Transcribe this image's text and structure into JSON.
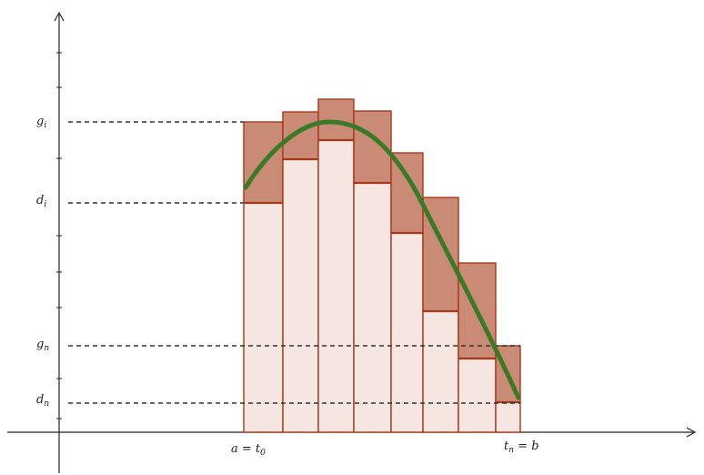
{
  "diagram": {
    "type": "upper-and-lower-step-function-sums",
    "y_labels": {
      "g_i": {
        "base": "g",
        "sub": "i"
      },
      "d_i": {
        "base": "d",
        "sub": "i"
      },
      "g_n": {
        "base": "g",
        "sub": "n"
      },
      "d_n": {
        "base": "d",
        "sub": "n"
      }
    },
    "x_labels": {
      "a_t0": {
        "pre": "a = t",
        "sub": "0"
      },
      "tn_b": {
        "base": "t",
        "sub": "n",
        "post": " = b"
      }
    },
    "colors": {
      "lower_fill": "#f5e6e1",
      "upper_fill": "#c98b76",
      "edge": "#a8381a",
      "curve": "#3a7a26",
      "axis": "#222222",
      "dashed": "#333333"
    }
  }
}
